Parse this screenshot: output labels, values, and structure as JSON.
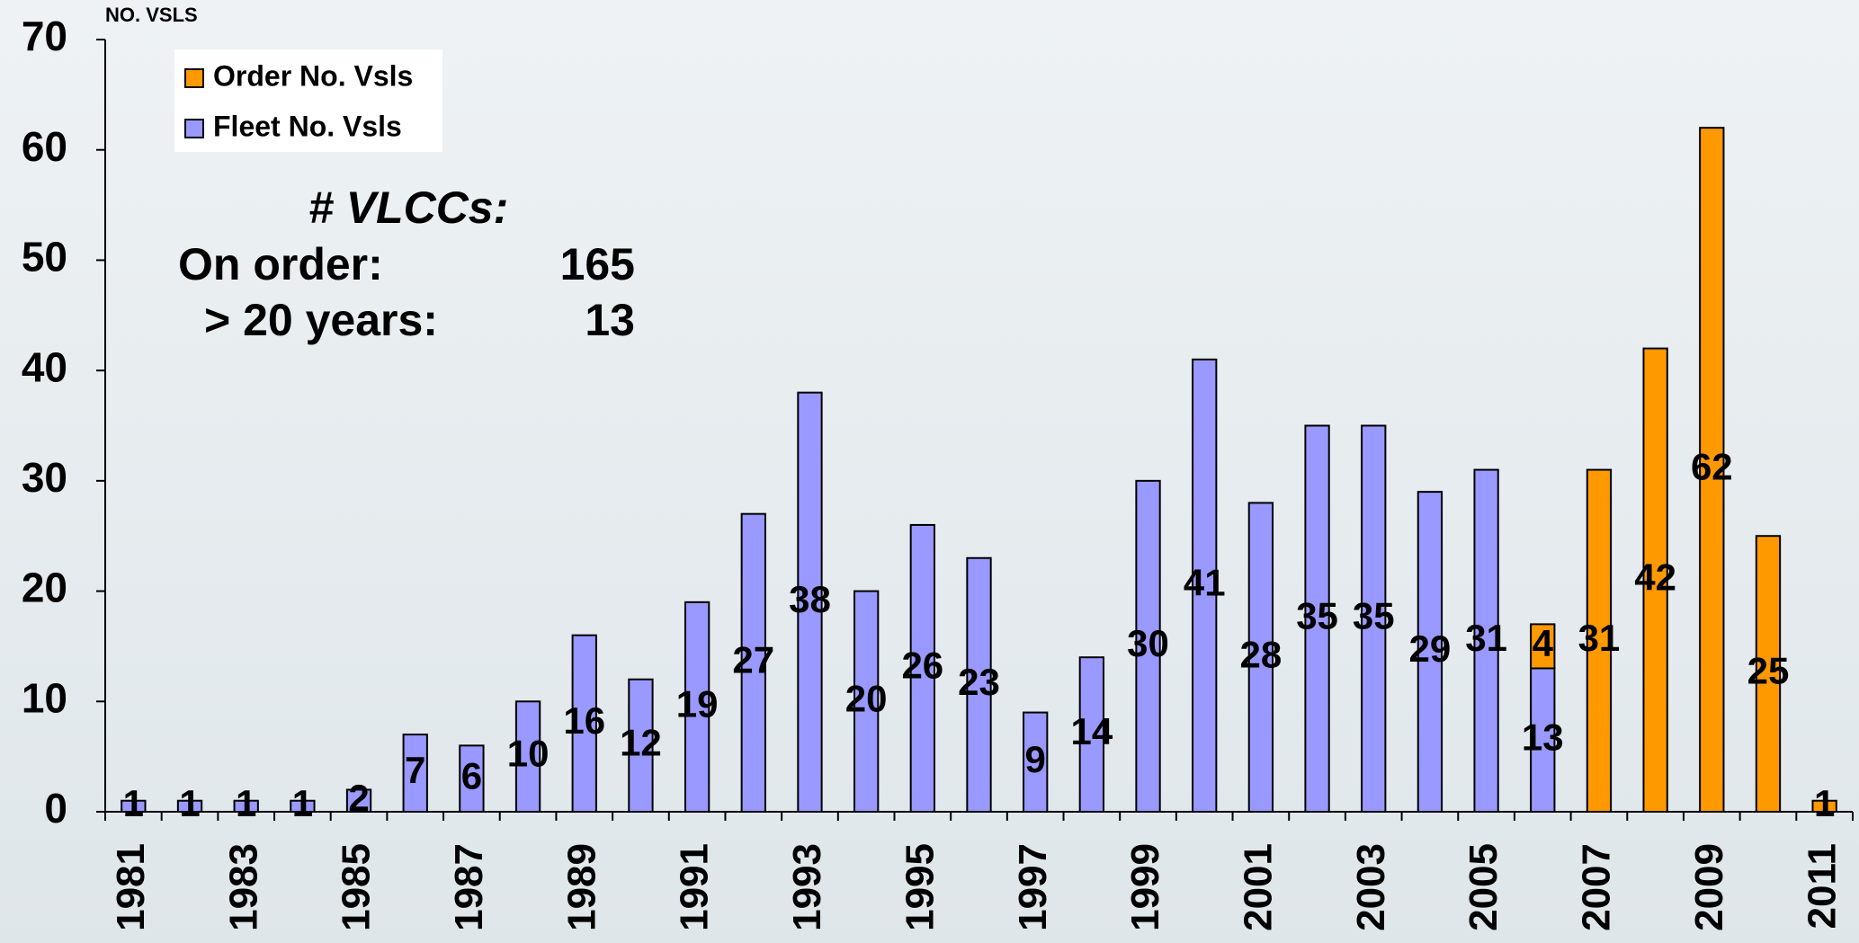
{
  "chart_data": {
    "type": "stacked_bar",
    "y_label": "NO. VSLS",
    "categories": [
      "1981",
      null,
      "1983",
      null,
      "1985",
      null,
      "1987",
      null,
      "1989",
      null,
      "1991",
      null,
      "1993",
      null,
      "1995",
      null,
      "1997",
      null,
      "1999",
      null,
      "2001",
      null,
      "2003",
      null,
      "2005",
      null,
      "2007",
      null,
      "2009",
      null,
      "2011"
    ],
    "series": [
      {
        "name": "Fleet No. Vsls",
        "color": "#9999ff",
        "values": [
          1,
          1,
          1,
          1,
          2,
          7,
          6,
          10,
          16,
          12,
          19,
          27,
          38,
          20,
          26,
          23,
          9,
          14,
          30,
          41,
          28,
          35,
          35,
          29,
          31,
          13,
          null,
          null,
          null,
          null,
          null
        ]
      },
      {
        "name": "Order No. Vsls",
        "color": "#ff9900",
        "values": [
          null,
          null,
          null,
          null,
          null,
          null,
          null,
          null,
          null,
          null,
          null,
          null,
          null,
          null,
          null,
          null,
          null,
          null,
          null,
          null,
          null,
          null,
          null,
          null,
          null,
          4,
          31,
          42,
          62,
          25,
          1
        ]
      }
    ],
    "ylim": [
      0,
      70
    ],
    "yticks": [
      0,
      10,
      20,
      30,
      40,
      50,
      60,
      70
    ],
    "grid": false,
    "legend": "top-left",
    "annotations": {
      "heading": "# VLCCs:",
      "order_label": "On order:",
      "order_value": "165",
      "old_label": "> 20 years:",
      "old_value": "13"
    }
  }
}
